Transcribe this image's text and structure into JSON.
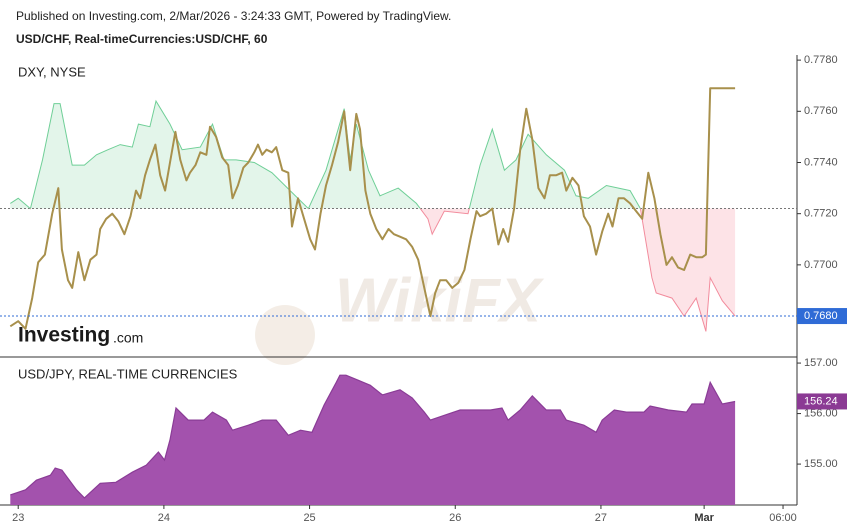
{
  "header": {
    "attribution": "Published on Investing.com, 2/Mar/2026 - 3:24:33 GMT, Powered by TradingView."
  },
  "watermark": {
    "brand": "Investing",
    "suffix": ".com",
    "wikifx": "WikiFX"
  },
  "chart_data": [
    {
      "type": "line",
      "title": "USD/CHF, Real-timeCurrencies:USD/CHF, 60",
      "xlim": [
        -3,
        128.3
      ],
      "ylim": [
        0.7664,
        0.7782
      ],
      "yticks": [
        {
          "value": 0.778,
          "label": "0.7780"
        },
        {
          "value": 0.776,
          "label": "0.7760"
        },
        {
          "value": 0.774,
          "label": "0.7740"
        },
        {
          "value": 0.772,
          "label": "0.7720"
        },
        {
          "value": 0.77,
          "label": "0.7700"
        }
      ],
      "last_value": {
        "value": 0.768,
        "label": "0.7680",
        "color": "#2f6bd6"
      },
      "series": [
        {
          "color": "#a8904c",
          "x": [
            -1.3,
            0,
            1.2,
            2.3,
            3.3,
            4.4,
            5.6,
            6.6,
            7.2,
            8.2,
            8.9,
            9.9,
            10.9,
            11.9,
            12.9,
            13.5,
            14.5,
            15.5,
            16.5,
            17.5,
            18.5,
            19.4,
            20.1,
            20.9,
            21.7,
            22.6,
            23.4,
            24.2,
            25.0,
            25.9,
            26.7,
            27.7,
            28.3,
            29.2,
            30.0,
            31.0,
            31.6,
            32.6,
            33.6,
            34.6,
            35.3,
            36.2,
            37.1,
            37.9,
            38.9,
            39.5,
            40.2,
            40.9,
            41.8,
            42.5,
            43.5,
            44.5,
            45.1,
            46.1,
            47.1,
            48.1,
            48.9,
            49.8,
            50.7,
            51.7,
            52.7,
            53.7,
            54.7,
            55.7,
            56.3,
            57.2,
            58.0,
            59.0,
            60.0,
            61.0,
            61.9,
            62.9,
            63.9,
            64.9,
            65.9,
            66.9,
            67.9,
            68.7,
            69.5,
            70.5,
            71.5,
            72.5,
            73.5,
            74.5,
            75.5,
            76.1,
            77.1,
            78.1,
            79.1,
            79.9,
            80.7,
            81.7,
            82.7,
            83.7,
            84.7,
            85.7,
            86.7,
            87.6,
            88.6,
            89.6,
            90.3,
            91.3,
            92.3,
            93.2,
            94.2,
            95.2,
            96.2,
            97.2,
            97.9,
            98.9,
            99.8,
            100.8,
            101.8,
            102.8,
            103.8,
            104.8,
            105.8,
            106.8,
            107.7,
            108.7,
            109.7,
            110.7,
            111.7,
            112.7,
            113.3,
            114.0,
            115.0,
            118.1
          ],
          "values": [
            0.7676,
            0.7678,
            0.7675,
            0.7687,
            0.7701,
            0.7704,
            0.772,
            0.773,
            0.7706,
            0.7694,
            0.7691,
            0.7705,
            0.7694,
            0.7702,
            0.7704,
            0.7714,
            0.7718,
            0.772,
            0.7717,
            0.7712,
            0.7719,
            0.7729,
            0.7726,
            0.7735,
            0.7741,
            0.7747,
            0.7735,
            0.7729,
            0.774,
            0.7752,
            0.7741,
            0.7733,
            0.7736,
            0.7739,
            0.7744,
            0.7743,
            0.7754,
            0.775,
            0.7742,
            0.7739,
            0.7726,
            0.7731,
            0.7738,
            0.774,
            0.7744,
            0.7747,
            0.7743,
            0.7745,
            0.7744,
            0.7746,
            0.7737,
            0.7736,
            0.7715,
            0.7726,
            0.7718,
            0.771,
            0.7706,
            0.772,
            0.7731,
            0.7739,
            0.7748,
            0.776,
            0.7737,
            0.7759,
            0.7753,
            0.7729,
            0.772,
            0.7714,
            0.771,
            0.7714,
            0.7712,
            0.7711,
            0.771,
            0.7707,
            0.7702,
            0.7691,
            0.768,
            0.7689,
            0.7694,
            0.7694,
            0.7691,
            0.7693,
            0.7698,
            0.771,
            0.7721,
            0.7719,
            0.772,
            0.7722,
            0.7708,
            0.7714,
            0.7709,
            0.7722,
            0.7745,
            0.7761,
            0.7749,
            0.773,
            0.7726,
            0.7735,
            0.7735,
            0.7736,
            0.7729,
            0.7734,
            0.7731,
            0.7719,
            0.7715,
            0.7704,
            0.7713,
            0.772,
            0.7715,
            0.7726,
            0.7726,
            0.7724,
            0.7721,
            0.7718,
            0.7736,
            0.7726,
            0.7712,
            0.77,
            0.7703,
            0.7699,
            0.7698,
            0.7704,
            0.7703,
            0.7703,
            0.7704,
            0.7769,
            0.7769,
            0.7769
          ]
        },
        {
          "name": "DXY, NYSE",
          "color": "#6fcf97",
          "fill": "#e3f5ea",
          "down_color": "#f28b9c",
          "down_fill": "#fde3e7",
          "baseline": 0.7722,
          "x": [
            -1.3,
            0,
            2.0,
            4.0,
            5.9,
            6.9,
            8.9,
            10.9,
            12.9,
            14.8,
            16.8,
            18.8,
            19.8,
            21.7,
            22.7,
            25.0,
            27.0,
            30.0,
            32.0,
            33.9,
            35.9,
            38.9,
            41.8,
            44.8,
            47.8,
            50.7,
            53.7,
            54.7,
            55.7,
            57.7,
            59.6,
            62.6,
            65.6,
            67.5,
            68.2,
            70.2,
            74.1,
            76.1,
            78.1,
            80.1,
            82.0,
            84.0,
            87.0,
            90.0,
            91.9,
            93.9,
            96.9,
            100.8,
            102.5,
            104.4,
            105.1,
            107.7,
            109.7,
            111.7,
            113.3,
            114.0,
            116.0,
            118.1
          ],
          "values": [
            0.7724,
            0.7726,
            0.7722,
            0.7741,
            0.7763,
            0.7763,
            0.7739,
            0.7739,
            0.7743,
            0.7745,
            0.7747,
            0.7746,
            0.7755,
            0.7754,
            0.7764,
            0.7755,
            0.7745,
            0.7746,
            0.7755,
            0.7741,
            0.7741,
            0.774,
            0.7736,
            0.7729,
            0.7722,
            0.7737,
            0.7761,
            0.7741,
            0.7755,
            0.7737,
            0.7727,
            0.773,
            0.7724,
            0.7718,
            0.7712,
            0.7721,
            0.772,
            0.7739,
            0.7753,
            0.7737,
            0.7741,
            0.7751,
            0.7743,
            0.7737,
            0.7727,
            0.7726,
            0.7731,
            0.7729,
            0.7722,
            0.7695,
            0.7689,
            0.7687,
            0.768,
            0.7687,
            0.7674,
            0.7695,
            0.7686,
            0.768
          ]
        }
      ]
    },
    {
      "type": "area",
      "xlim": [
        -3,
        128.3
      ],
      "ylim": [
        154.19,
        157.12
      ],
      "xticks": [
        {
          "value": 0,
          "label": "23"
        },
        24,
        {
          "value": 48,
          "label": "25"
        },
        {
          "value": 72,
          "label": "26"
        },
        {
          "value": 96,
          "label": "27"
        },
        {
          "value": 113,
          "label": "Mar"
        },
        {
          "value": 126,
          "label": "06:00"
        }
      ],
      "yticks": [
        {
          "value": 157,
          "label": "157.00"
        },
        {
          "value": 156,
          "label": "156.00"
        },
        {
          "value": 155,
          "label": "155.00"
        }
      ],
      "last_value": {
        "value": 156.24,
        "label": "156.24",
        "color": "#8b3a94"
      },
      "series": [
        {
          "name": "USD/JPY, REAL-TIME CURRENCIES",
          "color": "#8a3c96",
          "fill": "#a352ad",
          "x": [
            -1.3,
            1.2,
            3.0,
            5.3,
            6.1,
            7.2,
            9.6,
            10.9,
            13.5,
            16.1,
            18.8,
            21.1,
            23.1,
            24.1,
            25.0,
            26.0,
            28.0,
            30.6,
            32.0,
            34.3,
            35.3,
            37.9,
            40.2,
            42.5,
            44.5,
            46.5,
            48.4,
            50.4,
            52.4,
            53.0,
            54.0,
            56.0,
            58.0,
            60.0,
            62.9,
            64.9,
            66.9,
            67.9,
            70.8,
            72.8,
            75.8,
            77.8,
            79.7,
            80.7,
            82.7,
            84.7,
            87.0,
            89.3,
            90.3,
            93.2,
            95.2,
            96.2,
            98.2,
            100.2,
            103.1,
            104.1,
            107.1,
            110.1,
            111.0,
            113.0,
            114.0,
            116.0,
            118.1
          ],
          "values": [
            154.39,
            154.49,
            154.68,
            154.78,
            154.92,
            154.88,
            154.49,
            154.33,
            154.62,
            154.64,
            154.84,
            154.98,
            155.24,
            155.08,
            155.48,
            156.11,
            155.87,
            155.87,
            156.03,
            155.87,
            155.67,
            155.77,
            155.87,
            155.87,
            155.57,
            155.67,
            155.63,
            156.17,
            156.62,
            156.76,
            156.76,
            156.66,
            156.56,
            156.37,
            156.47,
            156.31,
            156.03,
            155.87,
            155.99,
            156.07,
            156.07,
            156.07,
            156.11,
            155.87,
            156.07,
            156.35,
            156.07,
            156.07,
            155.87,
            155.77,
            155.63,
            155.87,
            156.07,
            156.03,
            156.03,
            156.15,
            156.07,
            156.03,
            156.19,
            156.19,
            156.62,
            156.19,
            156.24
          ]
        }
      ]
    }
  ]
}
